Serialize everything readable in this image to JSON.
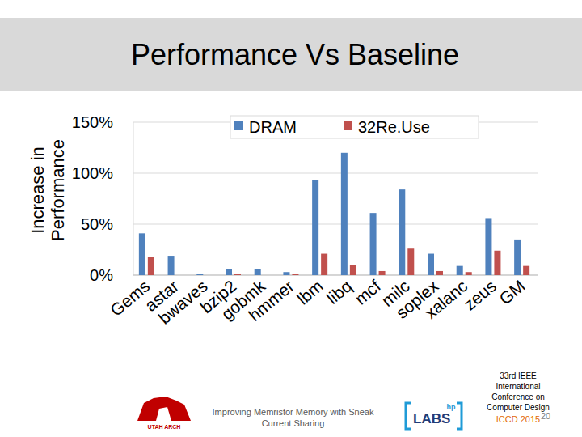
{
  "chart_data": {
    "type": "bar",
    "title": "Performance Vs Baseline",
    "y_label": "Increase in Performance",
    "categories": [
      "Gems",
      "astar",
      "bwaves",
      "bzip2",
      "gobmk",
      "hmmer",
      "lbm",
      "libq",
      "mcf",
      "milc",
      "soplex",
      "xalanc",
      "zeus",
      "GM"
    ],
    "series": [
      {
        "name": "DRAM",
        "color": "#4f81bd",
        "values": [
          41,
          19,
          1,
          6,
          6,
          3,
          93,
          120,
          61,
          84,
          21,
          9,
          56,
          35
        ]
      },
      {
        "name": "32Re.Use",
        "color": "#c0504d",
        "values": [
          18,
          0,
          0,
          1,
          0,
          1,
          21,
          10,
          4,
          26,
          4,
          3,
          24,
          9
        ]
      }
    ],
    "ylim": [
      0,
      150
    ],
    "yticks": [
      {
        "value": 0,
        "label": "0%"
      },
      {
        "value": 50,
        "label": "50%"
      },
      {
        "value": 100,
        "label": "100%"
      },
      {
        "value": 150,
        "label": "150%"
      }
    ],
    "grid": true,
    "legend": "top"
  },
  "footer": {
    "caption": "Improving Memristor Memory with Sneak Current Sharing",
    "conference": "33rd IEEE International Conference on Computer Design",
    "conference_short": "ICCD 2015",
    "page": "20",
    "left_logo": "UTAH ARCH",
    "right_logo": "LABS",
    "right_logo_mark": "hp"
  }
}
